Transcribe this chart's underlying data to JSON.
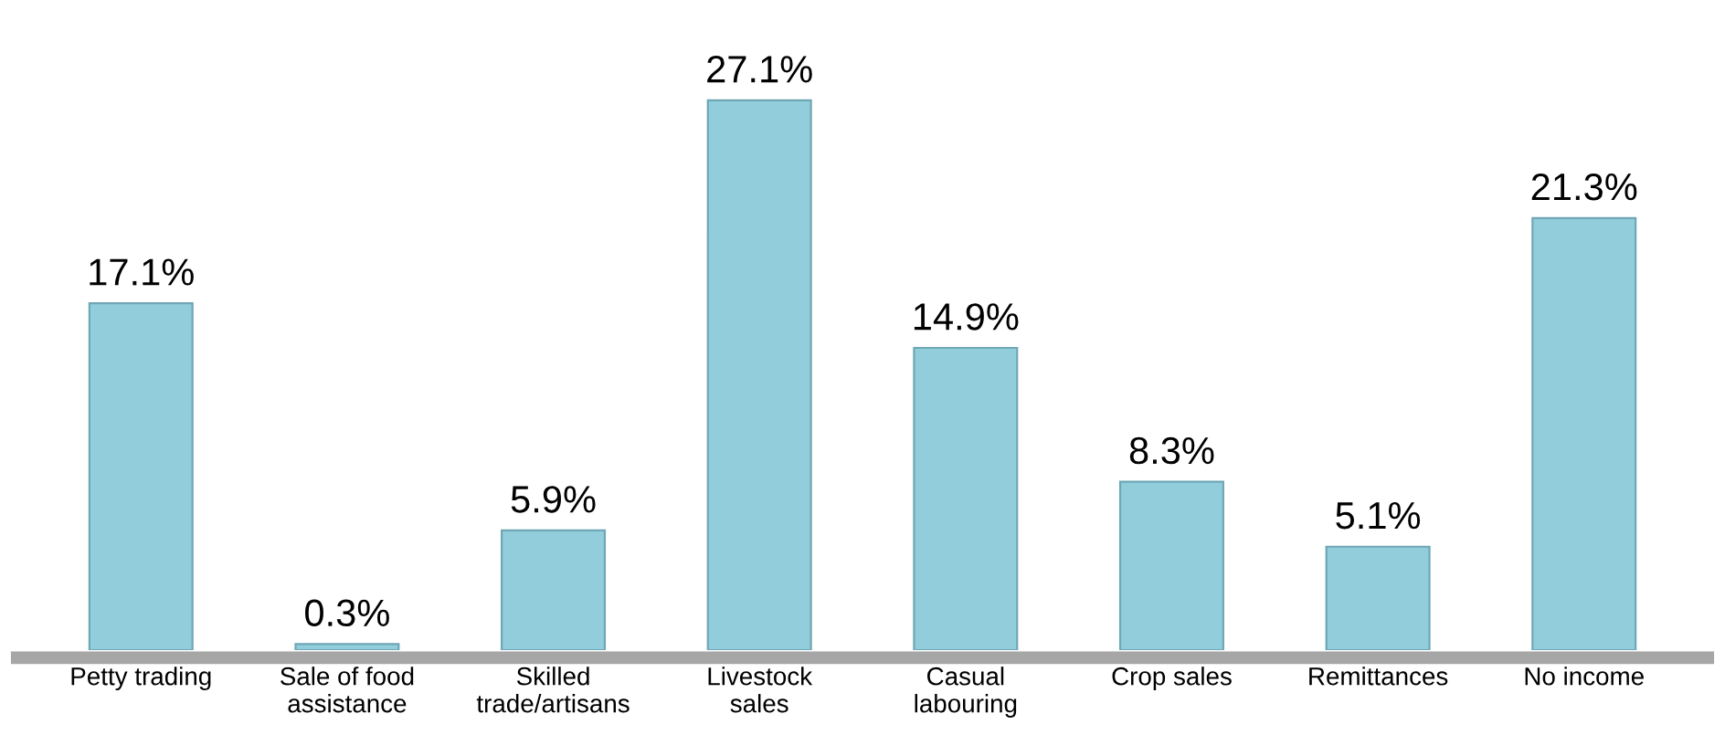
{
  "chart_data": {
    "type": "bar",
    "categories": [
      "Petty trading",
      "Sale of food\nassistance",
      "Skilled\ntrade/artisans",
      "Livestock\nsales",
      "Casual\nlabouring",
      "Crop sales",
      "Remittances",
      "No income"
    ],
    "values": [
      17.1,
      0.3,
      5.9,
      27.1,
      14.9,
      8.3,
      5.1,
      21.3
    ],
    "value_labels": [
      "17.1%",
      "0.3%",
      "5.9%",
      "27.1%",
      "14.9%",
      "8.3%",
      "5.1%",
      "21.3%"
    ],
    "color": "#92cddc",
    "grid": false,
    "legend": false
  }
}
